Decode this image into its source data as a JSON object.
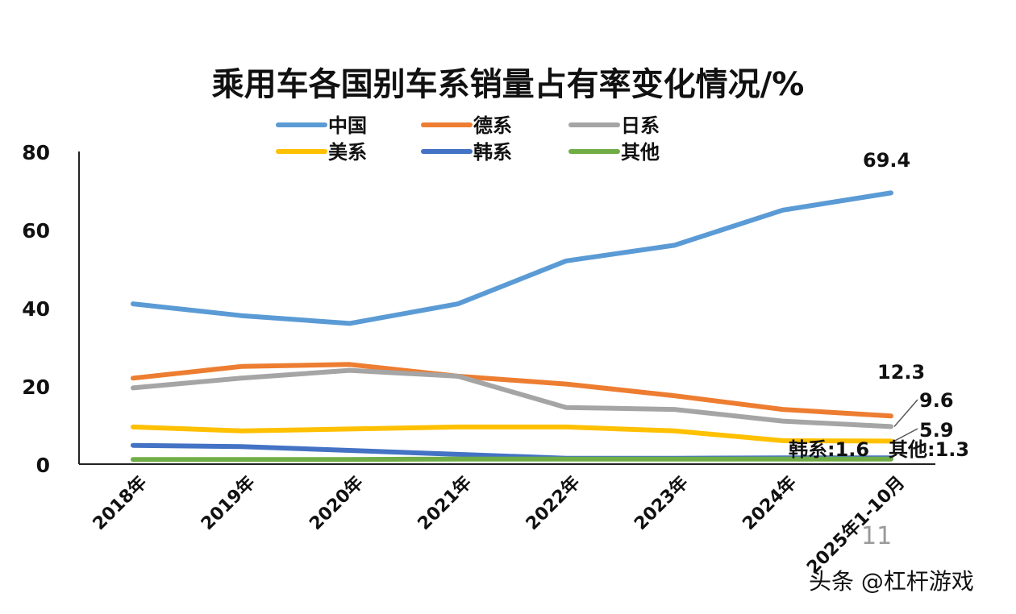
{
  "chart_data": {
    "type": "line",
    "title": "乘用车各国别车系销量占有率变化情况/%",
    "categories": [
      "2018年",
      "2019年",
      "2020年",
      "2021年",
      "2022年",
      "2023年",
      "2024年",
      "2025年1-10月"
    ],
    "ylim": [
      0,
      80
    ],
    "yticks": [
      "0",
      "20",
      "40",
      "60",
      "80"
    ],
    "grid": false,
    "legend_position": "top",
    "series": [
      {
        "name": "中国",
        "color": "#5b9bd5",
        "values": [
          41,
          38,
          36,
          41,
          52,
          56,
          65,
          69.4
        ]
      },
      {
        "name": "德系",
        "color": "#ed7d31",
        "values": [
          22,
          25,
          25.5,
          22.5,
          20.5,
          17.5,
          14,
          12.3
        ]
      },
      {
        "name": "日系",
        "color": "#a5a5a5",
        "values": [
          19.5,
          22,
          24,
          22.5,
          14.5,
          14,
          11,
          9.6
        ]
      },
      {
        "name": "美系",
        "color": "#ffc000",
        "values": [
          9.5,
          8.5,
          9,
          9.5,
          9.5,
          8.5,
          6,
          5.9
        ]
      },
      {
        "name": "韩系",
        "color": "#4472c4",
        "values": [
          4.8,
          4.5,
          3.5,
          2.5,
          1.5,
          1.5,
          1.6,
          1.6
        ]
      },
      {
        "name": "其他",
        "color": "#70ad47",
        "values": [
          1.2,
          1.2,
          1.2,
          1.3,
          1.3,
          1.3,
          1.3,
          1.3
        ]
      }
    ],
    "annotations": [
      {
        "series": "中国",
        "text": "69.4"
      },
      {
        "series": "德系",
        "text": "12.3"
      },
      {
        "series": "日系",
        "text": "9.6"
      },
      {
        "series": "美系",
        "text": "5.9"
      },
      {
        "series": "韩系",
        "text": "韩系:1.6"
      },
      {
        "series": "其他",
        "text": "其他:1.3"
      }
    ]
  },
  "page_number": "11",
  "credit": "头条 @杠杆游戏"
}
